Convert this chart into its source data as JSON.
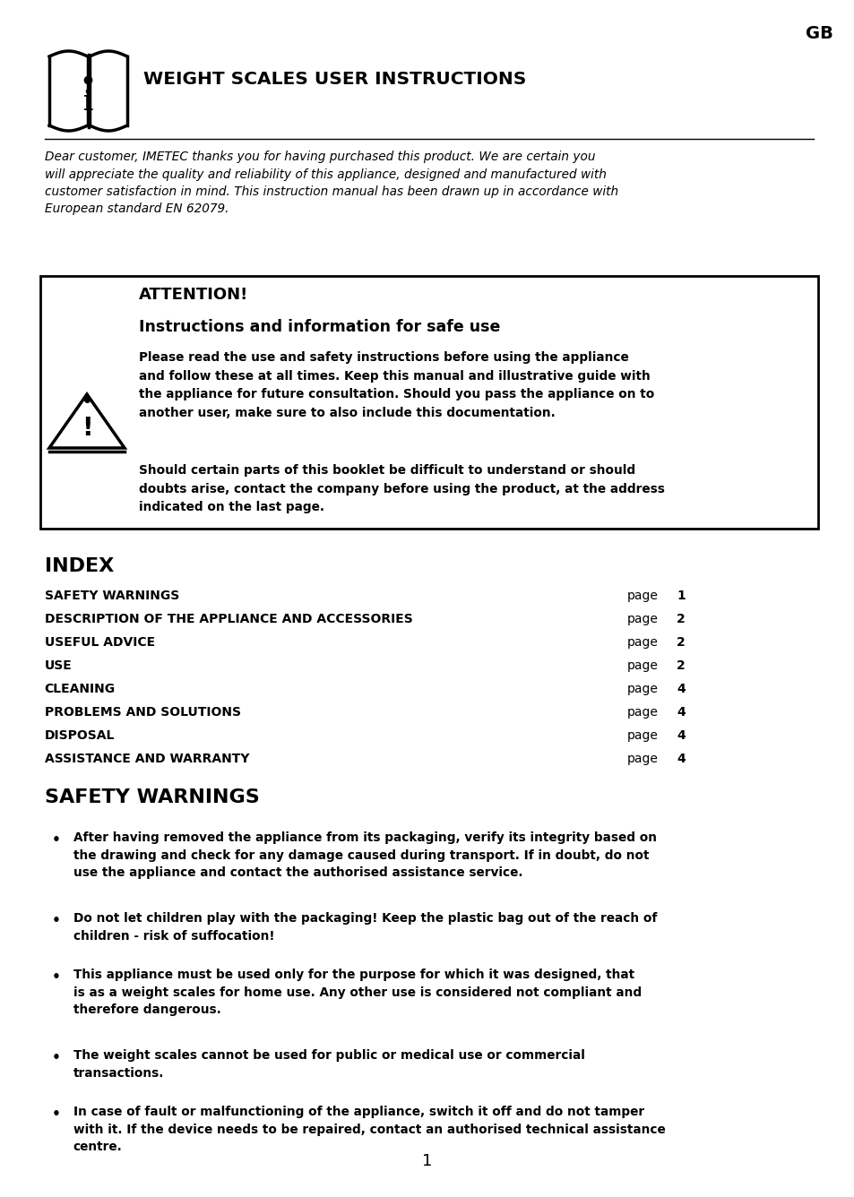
{
  "bg_color": "#ffffff",
  "text_color": "#000000",
  "gb_label": "GB",
  "title": "WEIGHT SCALES USER INSTRUCTIONS",
  "intro_text": "Dear customer, IMETEC thanks you for having purchased this product. We are certain you\nwill appreciate the quality and reliability of this appliance, designed and manufactured with\ncustomer satisfaction in mind. This instruction manual has been drawn up in accordance with\nEuropean standard EN 62079.",
  "attention_title": "ATTENTION!",
  "attention_subtitle": "Instructions and information for safe use",
  "attention_body1": "Please read the use and safety instructions before using the appliance\nand follow these at all times. Keep this manual and illustrative guide with\nthe appliance for future consultation. Should you pass the appliance on to\nanother user, make sure to also include this documentation.",
  "attention_body2": "Should certain parts of this booklet be difficult to understand or should\ndoubts arise, contact the company before using the product, at the address\nindicated on the last page.",
  "index_title": "INDEX",
  "index_items": [
    [
      "SAFETY WARNINGS",
      "page",
      "1"
    ],
    [
      "DESCRIPTION OF THE APPLIANCE AND ACCESSORIES",
      "page",
      "2"
    ],
    [
      "USEFUL ADVICE",
      "page",
      "2"
    ],
    [
      "USE",
      "page",
      "2"
    ],
    [
      "CLEANING",
      "page",
      "4"
    ],
    [
      "PROBLEMS AND SOLUTIONS",
      "page",
      "4"
    ],
    [
      "DISPOSAL",
      "page",
      "4"
    ],
    [
      "ASSISTANCE AND WARRANTY",
      "page",
      "4"
    ]
  ],
  "safety_title": "SAFETY WARNINGS",
  "safety_bullets": [
    "After having removed the appliance from its packaging, verify its integrity based on\nthe drawing and check for any damage caused during transport. If in doubt, do not\nuse the appliance and contact the authorised assistance service.",
    "Do not let children play with the packaging! Keep the plastic bag out of the reach of\nchildren - risk of suffocation!",
    "This appliance must be used only for the purpose for which it was designed, that\nis as a weight scales for home use. Any other use is considered not compliant and\ntherefore dangerous.",
    "The weight scales cannot be used for public or medical use or commercial\ntransactions.",
    "In case of fault or malfunctioning of the appliance, switch it off and do not tamper\nwith it. If the device needs to be repaired, contact an authorised technical assistance\ncentre."
  ],
  "page_number": "1",
  "ml": 0.052,
  "mr": 0.952
}
